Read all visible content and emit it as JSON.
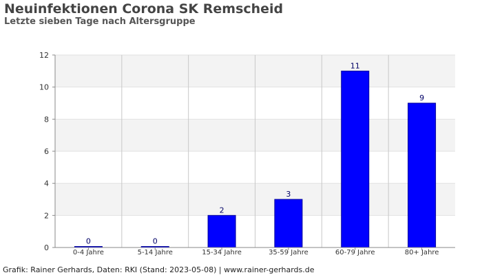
{
  "header": {
    "title": "Neuinfektionen Corona SK Remscheid",
    "subtitle": "Letzte sieben Tage nach Altersgruppe"
  },
  "footer": {
    "text": "Grafik: Rainer Gerhards, Daten: RKI (Stand: 2023-05-08) | www.rainer-gerhards.de"
  },
  "chart_data": {
    "type": "bar",
    "title": "Neuinfektionen Corona SK Remscheid",
    "subtitle": "Letzte sieben Tage nach Altersgruppe",
    "xlabel": "",
    "ylabel": "",
    "categories": [
      "0-4 Jahre",
      "5-14 Jahre",
      "15-34 Jahre",
      "35-59 Jahre",
      "60-79 Jahre",
      "80+ Jahre"
    ],
    "values": [
      0,
      0,
      2,
      3,
      11,
      9
    ],
    "data_labels": [
      "0",
      "0",
      "2",
      "3",
      "11",
      "9"
    ],
    "ylim": [
      0,
      12
    ],
    "yticks": [
      0,
      2,
      4,
      6,
      8,
      10,
      12
    ],
    "grid": true,
    "legend": "none",
    "colors": {
      "bar_fill": "#0000ff",
      "bar_stroke": "#000099",
      "band_shade": "#f3f3f3",
      "grid_line": "#c8c8c8",
      "axis_line": "#888888",
      "data_label": "#000066"
    }
  }
}
